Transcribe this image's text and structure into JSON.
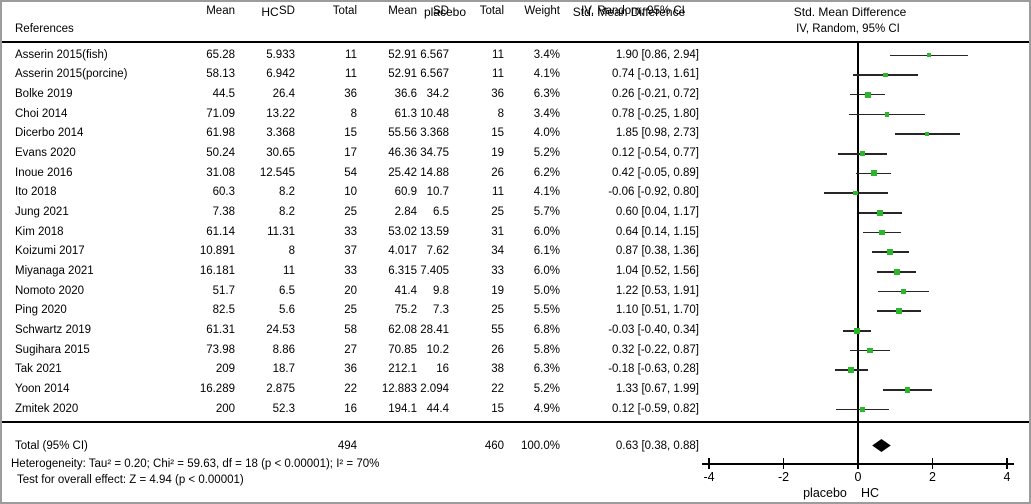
{
  "table": {
    "group_headers": {
      "hc": "HC",
      "placebo": "placebo",
      "smd_left": "Std. Mean Difference",
      "smd_right": "Std. Mean Difference"
    },
    "column_headers": {
      "references": "References",
      "mean": "Mean",
      "sd": "SD",
      "total": "Total",
      "weight": "Weight",
      "iv_left": "IV, Random, 95% CI",
      "iv_right": "IV, Random, 95% CI"
    },
    "studies": [
      {
        "name": "Asserin 2015(fish)",
        "hc_mean": "65.28",
        "hc_sd": "5.933",
        "hc_total": "11",
        "pl_mean": "52.91",
        "pl_sd": "6.567",
        "pl_total": "11",
        "weight": "3.4%",
        "ci_label": "1.90 [0.86, 2.94]"
      },
      {
        "name": "Asserin 2015(porcine)",
        "hc_mean": "58.13",
        "hc_sd": "6.942",
        "hc_total": "11",
        "pl_mean": "52.91",
        "pl_sd": "6.567",
        "pl_total": "11",
        "weight": "4.1%",
        "ci_label": "0.74 [-0.13, 1.61]"
      },
      {
        "name": "Bolke 2019",
        "hc_mean": "44.5",
        "hc_sd": "26.4",
        "hc_total": "36",
        "pl_mean": "36.6",
        "pl_sd": "34.2",
        "pl_total": "36",
        "weight": "6.3%",
        "ci_label": "0.26 [-0.21, 0.72]"
      },
      {
        "name": "Choi 2014",
        "hc_mean": "71.09",
        "hc_sd": "13.22",
        "hc_total": "8",
        "pl_mean": "61.3",
        "pl_sd": "10.48",
        "pl_total": "8",
        "weight": "3.4%",
        "ci_label": "0.78 [-0.25, 1.80]"
      },
      {
        "name": "Dicerbo 2014",
        "hc_mean": "61.98",
        "hc_sd": "3.368",
        "hc_total": "15",
        "pl_mean": "55.56",
        "pl_sd": "3.368",
        "pl_total": "15",
        "weight": "4.0%",
        "ci_label": "1.85 [0.98, 2.73]"
      },
      {
        "name": "Evans 2020",
        "hc_mean": "50.24",
        "hc_sd": "30.65",
        "hc_total": "17",
        "pl_mean": "46.36",
        "pl_sd": "34.75",
        "pl_total": "19",
        "weight": "5.2%",
        "ci_label": "0.12 [-0.54, 0.77]"
      },
      {
        "name": "Inoue 2016",
        "hc_mean": "31.08",
        "hc_sd": "12.545",
        "hc_total": "54",
        "pl_mean": "25.42",
        "pl_sd": "14.88",
        "pl_total": "26",
        "weight": "6.2%",
        "ci_label": "0.42 [-0.05, 0.89]"
      },
      {
        "name": "Ito 2018",
        "hc_mean": "60.3",
        "hc_sd": "8.2",
        "hc_total": "10",
        "pl_mean": "60.9",
        "pl_sd": "10.7",
        "pl_total": "11",
        "weight": "4.1%",
        "ci_label": "-0.06 [-0.92, 0.80]"
      },
      {
        "name": "Jung 2021",
        "hc_mean": "7.38",
        "hc_sd": "8.2",
        "hc_total": "25",
        "pl_mean": "2.84",
        "pl_sd": "6.5",
        "pl_total": "25",
        "weight": "5.7%",
        "ci_label": "0.60 [0.04, 1.17]"
      },
      {
        "name": "Kim 2018",
        "hc_mean": "61.14",
        "hc_sd": "11.31",
        "hc_total": "33",
        "pl_mean": "53.02",
        "pl_sd": "13.59",
        "pl_total": "31",
        "weight": "6.0%",
        "ci_label": "0.64 [0.14, 1.15]"
      },
      {
        "name": "Koizumi 2017",
        "hc_mean": "10.891",
        "hc_sd": "8",
        "hc_total": "37",
        "pl_mean": "4.017",
        "pl_sd": "7.62",
        "pl_total": "34",
        "weight": "6.1%",
        "ci_label": "0.87 [0.38, 1.36]"
      },
      {
        "name": "Miyanaga 2021",
        "hc_mean": "16.181",
        "hc_sd": "11",
        "hc_total": "33",
        "pl_mean": "6.315",
        "pl_sd": "7.405",
        "pl_total": "33",
        "weight": "6.0%",
        "ci_label": "1.04 [0.52, 1.56]"
      },
      {
        "name": "Nomoto 2020",
        "hc_mean": "51.7",
        "hc_sd": "6.5",
        "hc_total": "20",
        "pl_mean": "41.4",
        "pl_sd": "9.8",
        "pl_total": "19",
        "weight": "5.0%",
        "ci_label": "1.22 [0.53, 1.91]"
      },
      {
        "name": "Ping 2020",
        "hc_mean": "82.5",
        "hc_sd": "5.6",
        "hc_total": "25",
        "pl_mean": "75.2",
        "pl_sd": "7.3",
        "pl_total": "25",
        "weight": "5.5%",
        "ci_label": "1.10 [0.51, 1.70]"
      },
      {
        "name": "Schwartz 2019",
        "hc_mean": "61.31",
        "hc_sd": "24.53",
        "hc_total": "58",
        "pl_mean": "62.08",
        "pl_sd": "28.41",
        "pl_total": "55",
        "weight": "6.8%",
        "ci_label": "-0.03 [-0.40, 0.34]"
      },
      {
        "name": "Sugihara 2015",
        "hc_mean": "73.98",
        "hc_sd": "8.86",
        "hc_total": "27",
        "pl_mean": "70.85",
        "pl_sd": "10.2",
        "pl_total": "26",
        "weight": "5.8%",
        "ci_label": "0.32 [-0.22, 0.87]"
      },
      {
        "name": "Tak 2021",
        "hc_mean": "209",
        "hc_sd": "18.7",
        "hc_total": "36",
        "pl_mean": "212.1",
        "pl_sd": "16",
        "pl_total": "38",
        "weight": "6.3%",
        "ci_label": "-0.18 [-0.63, 0.28]"
      },
      {
        "name": "Yoon 2014",
        "hc_mean": "16.289",
        "hc_sd": "2.875",
        "hc_total": "22",
        "pl_mean": "12.883",
        "pl_sd": "2.094",
        "pl_total": "22",
        "weight": "5.2%",
        "ci_label": "1.33 [0.67, 1.99]"
      },
      {
        "name": "Zmitek 2020",
        "hc_mean": "200",
        "hc_sd": "52.3",
        "hc_total": "16",
        "pl_mean": "194.1",
        "pl_sd": "44.4",
        "pl_total": "15",
        "weight": "4.9%",
        "ci_label": "0.12 [-0.59, 0.82]"
      }
    ],
    "total_row": {
      "label": "Total (95% CI)",
      "hc_total": "494",
      "pl_total": "460",
      "weight": "100.0%",
      "ci_label": "0.63 [0.38, 0.88]"
    }
  },
  "footnotes": {
    "heterogeneity": "Heterogeneity: Tau² = 0.20; Chi² = 59.63, df = 18 (p < 0.00001); I² = 70%",
    "overall_effect": "Test for overall effect: Z = 4.94 (p < 0.00001)"
  },
  "axis": {
    "ticks": [
      -4,
      -2,
      0,
      2,
      4
    ],
    "min": -4,
    "max": 4,
    "favours_left": "placebo",
    "favours_right": "HC"
  },
  "colors": {
    "marker_green": "#2db52d",
    "ci_line": "#262626",
    "diamond": "#000000"
  },
  "chart_data": {
    "type": "scatter",
    "subtype": "forest-plot-horizontal-CI",
    "title": "Std. Mean Difference — IV, Random, 95% CI",
    "xlabel": "Std. Mean Difference (left favours placebo, right favours HC)",
    "xlim": [
      -4,
      4
    ],
    "x_ticks": [
      -4,
      -2,
      0,
      2,
      4
    ],
    "grid": false,
    "legend": "none",
    "points": [
      {
        "label": "Asserin 2015(fish)",
        "x": 1.9,
        "ci": [
          0.86,
          2.94
        ],
        "weight_pct": 3.4
      },
      {
        "label": "Asserin 2015(porcine)",
        "x": 0.74,
        "ci": [
          -0.13,
          1.61
        ],
        "weight_pct": 4.1
      },
      {
        "label": "Bolke 2019",
        "x": 0.26,
        "ci": [
          -0.21,
          0.72
        ],
        "weight_pct": 6.3
      },
      {
        "label": "Choi 2014",
        "x": 0.78,
        "ci": [
          -0.25,
          1.8
        ],
        "weight_pct": 3.4
      },
      {
        "label": "Dicerbo 2014",
        "x": 1.85,
        "ci": [
          0.98,
          2.73
        ],
        "weight_pct": 4.0
      },
      {
        "label": "Evans 2020",
        "x": 0.12,
        "ci": [
          -0.54,
          0.77
        ],
        "weight_pct": 5.2
      },
      {
        "label": "Inoue 2016",
        "x": 0.42,
        "ci": [
          -0.05,
          0.89
        ],
        "weight_pct": 6.2
      },
      {
        "label": "Ito 2018",
        "x": -0.06,
        "ci": [
          -0.92,
          0.8
        ],
        "weight_pct": 4.1
      },
      {
        "label": "Jung 2021",
        "x": 0.6,
        "ci": [
          0.04,
          1.17
        ],
        "weight_pct": 5.7
      },
      {
        "label": "Kim 2018",
        "x": 0.64,
        "ci": [
          0.14,
          1.15
        ],
        "weight_pct": 6.0
      },
      {
        "label": "Koizumi 2017",
        "x": 0.87,
        "ci": [
          0.38,
          1.36
        ],
        "weight_pct": 6.1
      },
      {
        "label": "Miyanaga 2021",
        "x": 1.04,
        "ci": [
          0.52,
          1.56
        ],
        "weight_pct": 6.0
      },
      {
        "label": "Nomoto 2020",
        "x": 1.22,
        "ci": [
          0.53,
          1.91
        ],
        "weight_pct": 5.0
      },
      {
        "label": "Ping 2020",
        "x": 1.1,
        "ci": [
          0.51,
          1.7
        ],
        "weight_pct": 5.5
      },
      {
        "label": "Schwartz 2019",
        "x": -0.03,
        "ci": [
          -0.4,
          0.34
        ],
        "weight_pct": 6.8
      },
      {
        "label": "Sugihara 2015",
        "x": 0.32,
        "ci": [
          -0.22,
          0.87
        ],
        "weight_pct": 5.8
      },
      {
        "label": "Tak 2021",
        "x": -0.18,
        "ci": [
          -0.63,
          0.28
        ],
        "weight_pct": 6.3
      },
      {
        "label": "Yoon 2014",
        "x": 1.33,
        "ci": [
          0.67,
          1.99
        ],
        "weight_pct": 5.2
      },
      {
        "label": "Zmitek 2020",
        "x": 0.12,
        "ci": [
          -0.59,
          0.82
        ],
        "weight_pct": 4.9
      }
    ],
    "summary_diamond": {
      "label": "Total (95% CI)",
      "x": 0.63,
      "ci": [
        0.38,
        0.88
      ],
      "weight_pct": 100.0
    }
  }
}
